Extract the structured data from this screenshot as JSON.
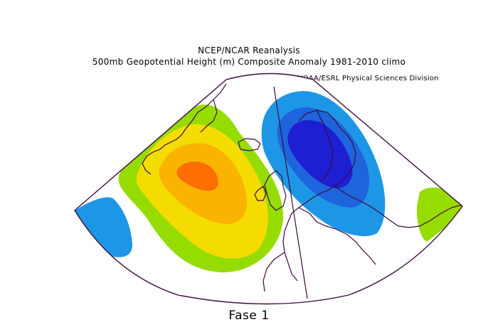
{
  "header": {
    "line1": "NCEP/NCAR Reanalysis",
    "line2": "500mb Geopotential Height (m) Composite Anomaly 1981-2010 climo",
    "credit": "NOAA/ESRL Physical Sciences Division"
  },
  "footer": {
    "label": "Fase 1"
  },
  "map": {
    "projection": "polar-sector",
    "region": "North Atlantic / Europe",
    "palette": {
      "positive_1": "#96dc00",
      "positive_2": "#f5dc00",
      "positive_3": "#fab400",
      "positive_4": "#ff6e00",
      "negative_1": "#1e96e6",
      "negative_2": "#1e64dc",
      "negative_3": "#1e1ed2",
      "outline": "#3c0a3c"
    }
  }
}
